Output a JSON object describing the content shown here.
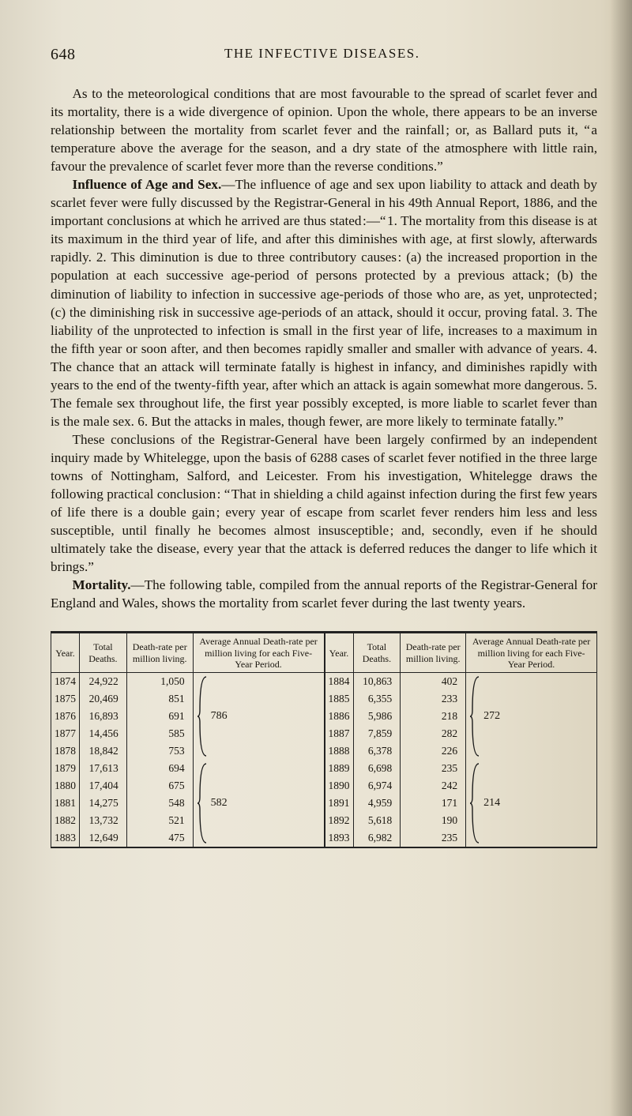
{
  "page_number": "648",
  "running_head": "THE INFECTIVE DISEASES.",
  "para1": "As to the meteorological conditions that are most favourable to the spread of scarlet fever and its mortality, there is a wide divergence of opinion. Upon the whole, there appears to be an inverse relationship between the mortality from scarlet fever and the rainfall ; or, as Ballard puts it, “ a temperature above the average for the season, and a dry state of the atmosphere with little rain, favour the prevalence of scarlet fever more than the reverse conditions.”",
  "para2_lead": "Influence of Age and Sex.",
  "para2_body": "—The influence of age and sex upon liability to attack and death by scarlet fever were fully discussed by the Registrar-General in his 49th Annual Report, 1886, and the important conclusions at which he arrived are thus stated :—“ 1. The mortality from this disease is at its maximum in the third year of life, and after this diminishes with age, at first slowly, afterwards rapidly. 2. This diminution is due to three contributory causes : (a) the increased proportion in the population at each successive age-period of persons protected by a previous attack ; (b) the diminution of liability to infection in successive age-periods of those who are, as yet, unprotected ; (c) the diminishing risk in successive age-periods of an attack, should it occur, proving fatal. 3. The liability of the unprotected to infection is small in the first year of life, increases to a maximum in the fifth year or soon after, and then becomes rapidly smaller and smaller with advance of years. 4. The chance that an attack will terminate fatally is highest in infancy, and diminishes rapidly with years to the end of the twenty-fifth year, after which an attack is again somewhat more dangerous. 5. The female sex throughout life, the first year possibly excepted, is more liable to scarlet fever than is the male sex. 6. But the attacks in males, though fewer, are more likely to terminate fatally.”",
  "para3": "These conclusions of the Registrar-General have been largely confirmed by an independent inquiry made by Whitelegge, upon the basis of 6288 cases of scarlet fever notified in the three large towns of Nottingham, Salford, and Leicester. From his investigation, Whitelegge draws the following practical conclusion : “ That in shielding a child against infection during the first few years of life there is a double gain ; every year of escape from scarlet fever renders him less and less susceptible, until finally he becomes almost insusceptible ; and, secondly, even if he should ultimately take the disease, every year that the attack is deferred reduces the danger to life which it brings.”",
  "para4_lead": "Mortality.",
  "para4_body": "—The following table, compiled from the annual reports of the Registrar-General for England and Wales, shows the mortality from scarlet fever during the last twenty years.",
  "table": {
    "columns": [
      "Year.",
      "Total Deaths.",
      "Death-rate per million living.",
      "Average Annual Death-rate per million living for each Five-Year Period."
    ],
    "left_rows": [
      {
        "year": "1874",
        "deaths": "24,922",
        "rate": "1,050"
      },
      {
        "year": "1875",
        "deaths": "20,469",
        "rate": "851"
      },
      {
        "year": "1876",
        "deaths": "16,893",
        "rate": "691"
      },
      {
        "year": "1877",
        "deaths": "14,456",
        "rate": "585"
      },
      {
        "year": "1878",
        "deaths": "18,842",
        "rate": "753"
      },
      {
        "year": "1879",
        "deaths": "17,613",
        "rate": "694"
      },
      {
        "year": "1880",
        "deaths": "17,404",
        "rate": "675"
      },
      {
        "year": "1881",
        "deaths": "14,275",
        "rate": "548"
      },
      {
        "year": "1882",
        "deaths": "13,732",
        "rate": "521"
      },
      {
        "year": "1883",
        "deaths": "12,649",
        "rate": "475"
      }
    ],
    "right_rows": [
      {
        "year": "1884",
        "deaths": "10,863",
        "rate": "402"
      },
      {
        "year": "1885",
        "deaths": "6,355",
        "rate": "233"
      },
      {
        "year": "1886",
        "deaths": "5,986",
        "rate": "218"
      },
      {
        "year": "1887",
        "deaths": "7,859",
        "rate": "282"
      },
      {
        "year": "1888",
        "deaths": "6,378",
        "rate": "226"
      },
      {
        "year": "1889",
        "deaths": "6,698",
        "rate": "235"
      },
      {
        "year": "1890",
        "deaths": "6,974",
        "rate": "242"
      },
      {
        "year": "1891",
        "deaths": "4,959",
        "rate": "171"
      },
      {
        "year": "1892",
        "deaths": "5,618",
        "rate": "190"
      },
      {
        "year": "1893",
        "deaths": "6,982",
        "rate": "235"
      }
    ],
    "avg_left_top": "786",
    "avg_left_bot": "582",
    "avg_right_top": "272",
    "avg_right_bot": "214",
    "brace_color": "#1a1a1a"
  }
}
